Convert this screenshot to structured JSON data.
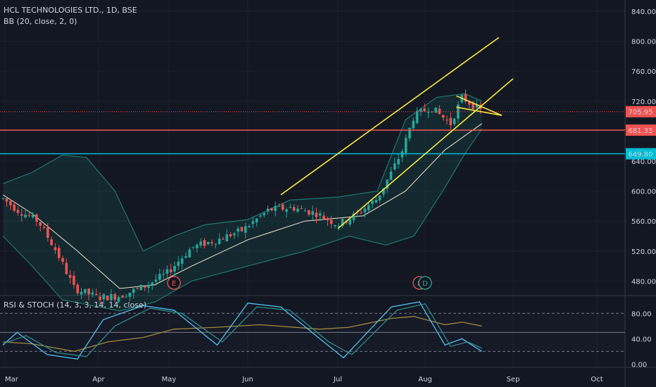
{
  "header": {
    "symbol": "HCL TECHNOLOGIES LTD., 1D, BSE",
    "indicator": "BB (20, close, 2, 0)",
    "oscillator": "RSI & STOCH (14, 3, 3, 14, 14, close)"
  },
  "colors": {
    "background": "#131722",
    "up": "#26a69a",
    "down": "#ef5350",
    "price_line": "#ef5350",
    "support": "#ef5350",
    "resistance": "#00bcd4",
    "trendline": "#ffeb3b",
    "bb_band": "#1a7a72",
    "bb_basis": "#f5e6c8",
    "rsi": "#a38a3f",
    "stoch_k": "#4fc3f7",
    "stoch_d": "#2e8b8b"
  },
  "events": [
    {
      "label": "E",
      "date": "May 3"
    },
    {
      "label": "E",
      "date": "Jul 30"
    },
    {
      "label": "D",
      "date": "Aug 1"
    }
  ],
  "chart_data": [
    {
      "type": "candlestick",
      "title": "HCL TECHNOLOGIES LTD., 1D, BSE",
      "x_categories": [
        "Mar",
        "Apr",
        "May",
        "Jun",
        "Jul",
        "Aug",
        "Sep",
        "Oct"
      ],
      "y_ticks": [
        480,
        520,
        560,
        600,
        640,
        680,
        720,
        760,
        800,
        840
      ],
      "ylim": [
        455,
        855
      ],
      "last_price": 705.95,
      "horizontal_levels": [
        {
          "value": 681.35,
          "label": "681.35",
          "color": "#ef5350"
        },
        {
          "value": 649.8,
          "label": "649.80",
          "color": "#00bcd4"
        }
      ],
      "close_path": [
        {
          "date": "Feb 25",
          "close": 590
        },
        {
          "date": "Mar 5",
          "close": 575
        },
        {
          "date": "Mar 12",
          "close": 560
        },
        {
          "date": "Mar 18",
          "close": 520
        },
        {
          "date": "Mar 24",
          "close": 470
        },
        {
          "date": "Apr 1",
          "close": 458
        },
        {
          "date": "Apr 10",
          "close": 460
        },
        {
          "date": "Apr 20",
          "close": 472
        },
        {
          "date": "Apr 30",
          "close": 490
        },
        {
          "date": "May 10",
          "close": 525
        },
        {
          "date": "May 20",
          "close": 535
        },
        {
          "date": "May 30",
          "close": 548
        },
        {
          "date": "Jun 8",
          "close": 575
        },
        {
          "date": "Jun 16",
          "close": 578
        },
        {
          "date": "Jun 24",
          "close": 570
        },
        {
          "date": "Jul 1",
          "close": 555
        },
        {
          "date": "Jul 8",
          "close": 570
        },
        {
          "date": "Jul 15",
          "close": 590
        },
        {
          "date": "Jul 20",
          "close": 625
        },
        {
          "date": "Jul 24",
          "close": 655
        },
        {
          "date": "Jul 28",
          "close": 700
        },
        {
          "date": "Aug 3",
          "close": 712
        },
        {
          "date": "Aug 10",
          "close": 690
        },
        {
          "date": "Aug 14",
          "close": 725
        },
        {
          "date": "Aug 21",
          "close": 706
        }
      ],
      "bollinger": {
        "upper": [
          {
            "date": "Feb 25",
            "value": 610
          },
          {
            "date": "Mar 10",
            "value": 625
          },
          {
            "date": "Mar 20",
            "value": 648
          },
          {
            "date": "Mar 28",
            "value": 645
          },
          {
            "date": "Apr 8",
            "value": 600
          },
          {
            "date": "Apr 20",
            "value": 520
          },
          {
            "date": "May 3",
            "value": 540
          },
          {
            "date": "May 15",
            "value": 555
          },
          {
            "date": "Jun 1",
            "value": 562
          },
          {
            "date": "Jun 15",
            "value": 588
          },
          {
            "date": "Jul 1",
            "value": 592
          },
          {
            "date": "Jul 15",
            "value": 600
          },
          {
            "date": "Jul 25",
            "value": 695
          },
          {
            "date": "Aug 5",
            "value": 725
          },
          {
            "date": "Aug 15",
            "value": 730
          },
          {
            "date": "Aug 21",
            "value": 720
          }
        ],
        "lower": [
          {
            "date": "Feb 25",
            "value": 540
          },
          {
            "date": "Mar 10",
            "value": 500
          },
          {
            "date": "Mar 20",
            "value": 455
          },
          {
            "date": "Apr 10",
            "value": 440
          },
          {
            "date": "Apr 25",
            "value": 452
          },
          {
            "date": "May 10",
            "value": 480
          },
          {
            "date": "Jun 1",
            "value": 500
          },
          {
            "date": "Jun 20",
            "value": 520
          },
          {
            "date": "Jul 5",
            "value": 540
          },
          {
            "date": "Jul 18",
            "value": 528
          },
          {
            "date": "Jul 28",
            "value": 540
          },
          {
            "date": "Aug 8",
            "value": 605
          },
          {
            "date": "Aug 15",
            "value": 650
          },
          {
            "date": "Aug 21",
            "value": 683
          }
        ],
        "basis": [
          {
            "date": "Feb 25",
            "value": 595
          },
          {
            "date": "Mar 10",
            "value": 570
          },
          {
            "date": "Mar 25",
            "value": 520
          },
          {
            "date": "Apr 10",
            "value": 470
          },
          {
            "date": "Apr 25",
            "value": 475
          },
          {
            "date": "May 10",
            "value": 500
          },
          {
            "date": "Jun 1",
            "value": 535
          },
          {
            "date": "Jun 20",
            "value": 560
          },
          {
            "date": "Jul 10",
            "value": 567
          },
          {
            "date": "Jul 25",
            "value": 600
          },
          {
            "date": "Aug 8",
            "value": 655
          },
          {
            "date": "Aug 21",
            "value": 690
          }
        ]
      },
      "trendlines": [
        {
          "from": {
            "date": "Jun 12",
            "value": 595
          },
          "to": {
            "date": "Aug 27",
            "value": 805
          }
        },
        {
          "from": {
            "date": "Jul 1",
            "value": 550
          },
          "to": {
            "date": "Sep 1",
            "value": 750
          }
        },
        {
          "from": {
            "date": "Aug 12",
            "value": 727
          },
          "to": {
            "date": "Aug 28",
            "value": 701
          }
        },
        {
          "from": {
            "date": "Aug 12",
            "value": 712
          },
          "to": {
            "date": "Aug 28",
            "value": 701
          }
        }
      ]
    },
    {
      "type": "line",
      "title": "RSI & STOCH (14, 3, 3, 14, 14, close)",
      "y_ticks": [
        0,
        40,
        80
      ],
      "ylim": [
        -5,
        108
      ],
      "bands": [
        80,
        50,
        20
      ],
      "series": [
        {
          "key": "rsi",
          "points": [
            {
              "date": "Feb 25",
              "value": 35
            },
            {
              "date": "Mar 10",
              "value": 32
            },
            {
              "date": "Mar 24",
              "value": 20
            },
            {
              "date": "Apr 5",
              "value": 35
            },
            {
              "date": "Apr 20",
              "value": 42
            },
            {
              "date": "May 3",
              "value": 55
            },
            {
              "date": "May 20",
              "value": 58
            },
            {
              "date": "Jun 5",
              "value": 62
            },
            {
              "date": "Jun 25",
              "value": 55
            },
            {
              "date": "Jul 5",
              "value": 58
            },
            {
              "date": "Jul 20",
              "value": 72
            },
            {
              "date": "Jul 28",
              "value": 75
            },
            {
              "date": "Aug 8",
              "value": 62
            },
            {
              "date": "Aug 14",
              "value": 66
            },
            {
              "date": "Aug 21",
              "value": 60
            }
          ]
        },
        {
          "key": "stoch_k",
          "points": [
            {
              "date": "Feb 25",
              "value": 30
            },
            {
              "date": "Mar 5",
              "value": 50
            },
            {
              "date": "Mar 15",
              "value": 15
            },
            {
              "date": "Mar 25",
              "value": 8
            },
            {
              "date": "Apr 3",
              "value": 70
            },
            {
              "date": "Apr 20",
              "value": 92
            },
            {
              "date": "May 3",
              "value": 85
            },
            {
              "date": "May 20",
              "value": 30
            },
            {
              "date": "Jun 1",
              "value": 96
            },
            {
              "date": "Jun 12",
              "value": 90
            },
            {
              "date": "Jun 25",
              "value": 40
            },
            {
              "date": "Jul 3",
              "value": 10
            },
            {
              "date": "Jul 20",
              "value": 90
            },
            {
              "date": "Jul 30",
              "value": 98
            },
            {
              "date": "Aug 8",
              "value": 30
            },
            {
              "date": "Aug 14",
              "value": 40
            },
            {
              "date": "Aug 21",
              "value": 20
            }
          ]
        },
        {
          "key": "stoch_d",
          "points": [
            {
              "date": "Feb 25",
              "value": 32
            },
            {
              "date": "Mar 8",
              "value": 45
            },
            {
              "date": "Mar 18",
              "value": 18
            },
            {
              "date": "Mar 28",
              "value": 12
            },
            {
              "date": "Apr 8",
              "value": 60
            },
            {
              "date": "Apr 23",
              "value": 88
            },
            {
              "date": "May 6",
              "value": 80
            },
            {
              "date": "May 22",
              "value": 35
            },
            {
              "date": "Jun 4",
              "value": 90
            },
            {
              "date": "Jun 15",
              "value": 85
            },
            {
              "date": "Jun 28",
              "value": 35
            },
            {
              "date": "Jul 6",
              "value": 15
            },
            {
              "date": "Jul 22",
              "value": 85
            },
            {
              "date": "Aug 1",
              "value": 95
            },
            {
              "date": "Aug 10",
              "value": 28
            },
            {
              "date": "Aug 16",
              "value": 35
            },
            {
              "date": "Aug 21",
              "value": 25
            }
          ]
        }
      ]
    }
  ]
}
